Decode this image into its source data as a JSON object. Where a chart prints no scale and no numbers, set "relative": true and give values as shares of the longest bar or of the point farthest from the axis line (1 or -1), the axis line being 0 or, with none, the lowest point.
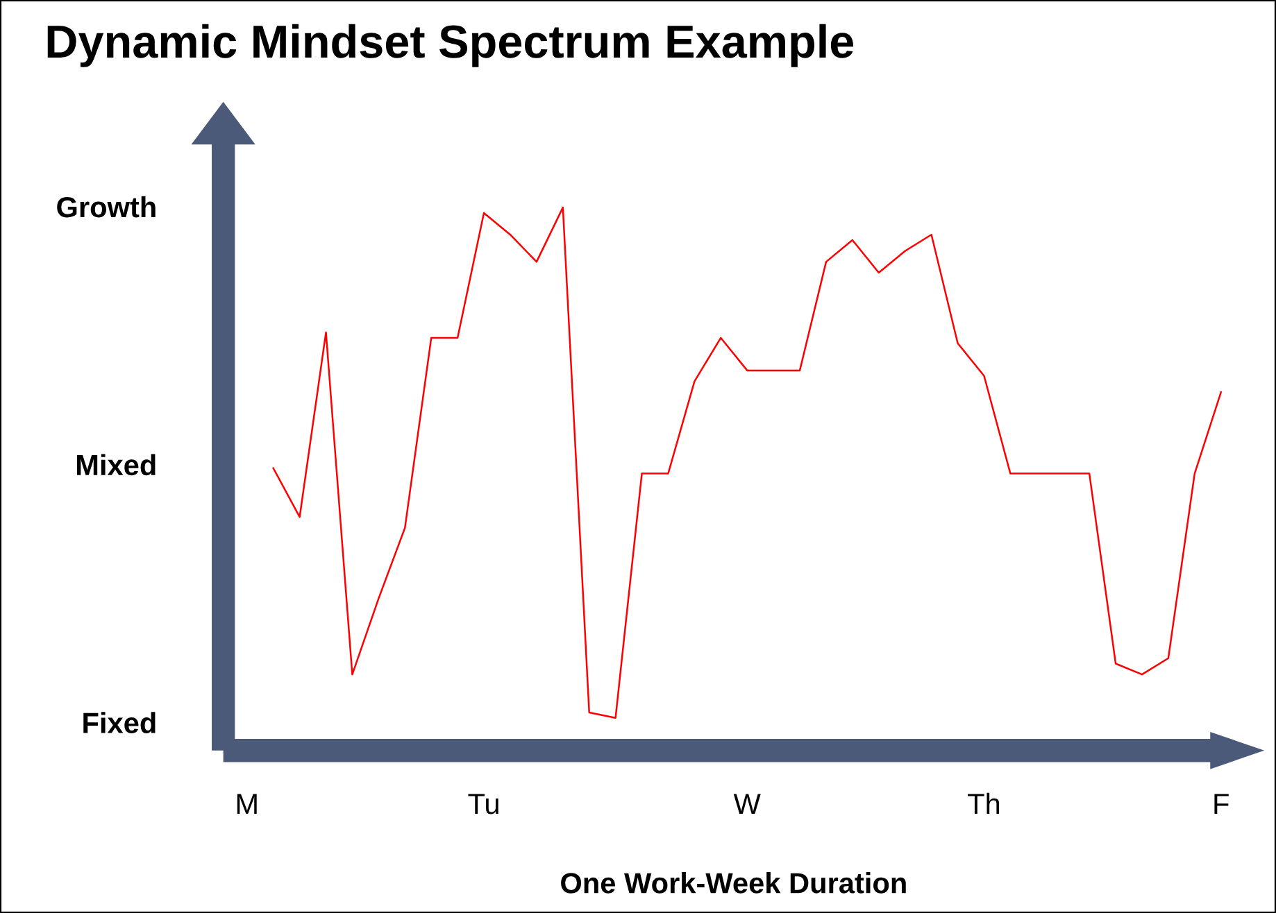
{
  "chart_data": {
    "type": "line",
    "title": "Dynamic Mindset Spectrum Example",
    "xlabel": "One Work-Week Duration",
    "relative": true,
    "categories": [
      "M",
      null,
      null,
      null,
      null,
      null,
      null,
      null,
      null,
      "Tu",
      null,
      null,
      null,
      null,
      null,
      null,
      null,
      null,
      null,
      "W",
      null,
      null,
      null,
      null,
      null,
      null,
      null,
      null,
      "Th",
      null,
      null,
      null,
      null,
      null,
      null,
      null,
      null,
      "F"
    ],
    "annotations": [
      "Fixed",
      "Mixed",
      "Growth"
    ],
    "grid": false,
    "legend": false,
    "marker": "none",
    "line_style": "solid",
    "series": [
      {
        "color": "#ff0000",
        "values": [
          null,
          0.52,
          0.43,
          0.77,
          0.14,
          0.28,
          0.41,
          0.76,
          0.76,
          0.99,
          0.95,
          0.9,
          1.0,
          0.07,
          0.06,
          0.51,
          0.51,
          0.68,
          0.76,
          0.7,
          0.7,
          0.7,
          0.9,
          0.94,
          0.88,
          0.92,
          0.95,
          0.75,
          0.69,
          0.51,
          0.51,
          0.51,
          0.51,
          0.16,
          0.14,
          0.17,
          0.51,
          0.66
        ]
      }
    ]
  }
}
